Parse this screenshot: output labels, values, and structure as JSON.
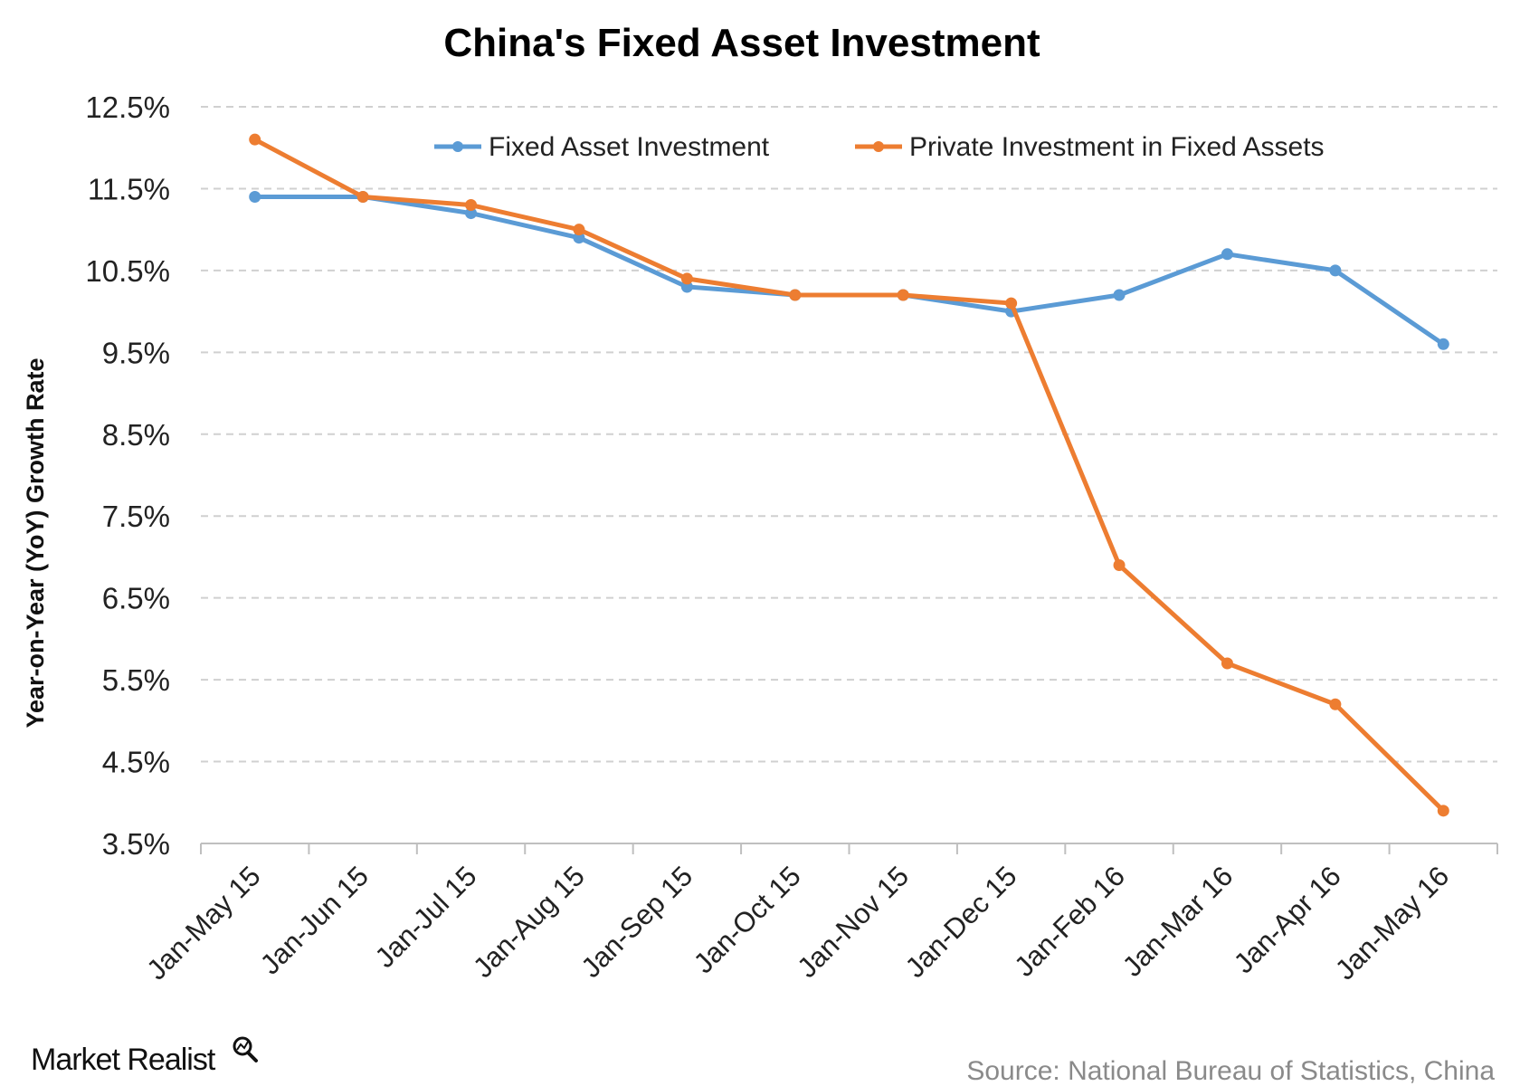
{
  "brand": {
    "name": "Market Realist"
  },
  "source": "Source: National Bureau of Statistics, China",
  "colors": {
    "series1": "#5b9bd5",
    "series2": "#ed7d31",
    "grid": "#d0d0d0",
    "axis": "#bfbfbf"
  },
  "chart_data": {
    "type": "line",
    "title": "China's Fixed Asset Investment",
    "xlabel": "",
    "ylabel": "Year-on-Year (YoY) Growth Rate",
    "ylim": [
      3.5,
      12.5
    ],
    "yticks": [
      3.5,
      4.5,
      5.5,
      6.5,
      7.5,
      8.5,
      9.5,
      10.5,
      11.5,
      12.5
    ],
    "ytick_labels": [
      "3.5%",
      "4.5%",
      "5.5%",
      "6.5%",
      "7.5%",
      "8.5%",
      "9.5%",
      "10.5%",
      "11.5%",
      "12.5%"
    ],
    "grid": true,
    "legend_position": "top",
    "categories": [
      "Jan-May 15",
      "Jan-Jun 15",
      "Jan-Jul 15",
      "Jan-Aug 15",
      "Jan-Sep 15",
      "Jan-Oct 15",
      "Jan-Nov 15",
      "Jan-Dec 15",
      "Jan-Feb 16",
      "Jan-Mar 16",
      "Jan-Apr 16",
      "Jan-May 16"
    ],
    "series": [
      {
        "name": "Fixed Asset Investment",
        "color": "#5b9bd5",
        "values": [
          11.4,
          11.4,
          11.2,
          10.9,
          10.3,
          10.2,
          10.2,
          10.0,
          10.2,
          10.7,
          10.5,
          9.6
        ]
      },
      {
        "name": "Private Investment in Fixed Assets",
        "color": "#ed7d31",
        "values": [
          12.1,
          11.4,
          11.3,
          11.0,
          10.4,
          10.2,
          10.2,
          10.1,
          6.9,
          5.7,
          5.2,
          3.9
        ]
      }
    ]
  }
}
